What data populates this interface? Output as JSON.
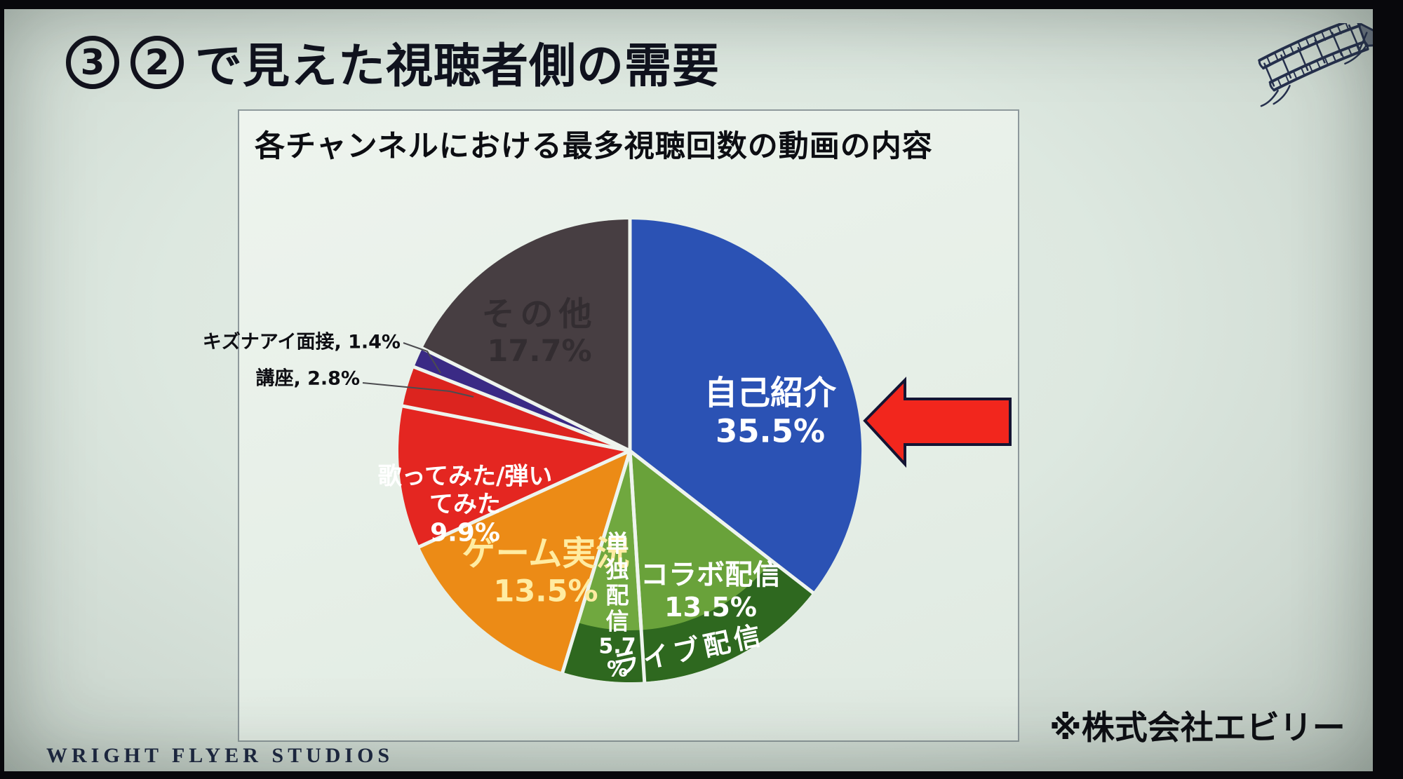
{
  "slide": {
    "title": {
      "badge1": "3",
      "badge2": "2",
      "text": "で見えた視聴者側の需要"
    },
    "source_note": "※株式会社エビリー",
    "footer": "WRIGHT FLYER STUDIOS"
  },
  "chart_data": {
    "type": "pie",
    "title": "各チャンネルにおける最多視聴回数の動画の内容",
    "unit": "%",
    "start_angle_deg": 0,
    "direction": "clockwise",
    "legend": "none",
    "separator_color": "#eef4ee",
    "segments": [
      {
        "label": "自己紹介",
        "value": 35.5,
        "color": "#2b52b4",
        "label_color": "#ffffff",
        "label_style": "on-slice"
      },
      {
        "label": "コラボ配信",
        "value": 13.5,
        "color": "#69a23a",
        "label_color": "#ffffff",
        "label_style": "on-slice"
      },
      {
        "label": "単独配信",
        "value": 5.7,
        "color": "#70a83f",
        "label_color": "#ffffff",
        "label_style": "on-slice-vertical"
      },
      {
        "label": "ゲーム実況",
        "value": 13.5,
        "color": "#ec8b16",
        "label_color": "#ffeca2",
        "label_style": "on-slice"
      },
      {
        "label": "歌ってみた/弾いてみた",
        "value": 9.9,
        "color": "#e42621",
        "label_color": "#ffffff",
        "label_style": "on-slice",
        "label_lines": [
          "歌ってみた/弾い",
          "てみた"
        ]
      },
      {
        "label": "講座",
        "value": 2.8,
        "color": "#dc241f",
        "label_color": "#0e0e13",
        "label_style": "callout"
      },
      {
        "label": "キズナアイ面接",
        "value": 1.4,
        "color": "#3a2a85",
        "label_color": "#0e0e13",
        "label_style": "callout"
      },
      {
        "label": "その他",
        "value": 17.7,
        "color": "#473e42",
        "label_color": "#332d31",
        "label_style": "on-slice"
      }
    ],
    "group_band": {
      "label": "ライブ配信",
      "covers": [
        "コラボ配信",
        "単独配信"
      ],
      "color": "#2e681f",
      "label_color": "#ffffff"
    }
  },
  "annotations": {
    "arrow": {
      "shape": "left-arrow",
      "fill": "#f2261d",
      "outline": "#141433",
      "points_at": "自己紹介"
    }
  }
}
